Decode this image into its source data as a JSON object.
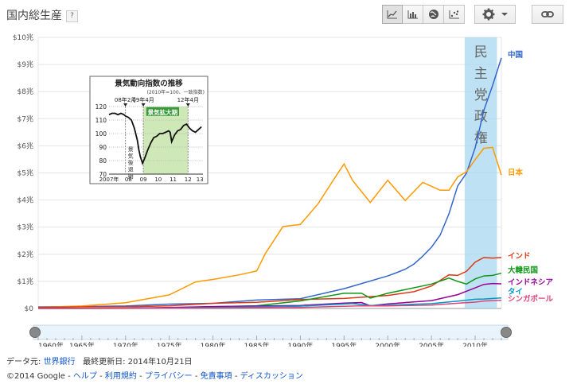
{
  "header": {
    "title": "国内総生産",
    "help": "?"
  },
  "toolbar": {
    "chart_types": [
      "line-chart-icon",
      "bar-chart-icon",
      "globe-icon",
      "scatter-icon"
    ],
    "settings": "gear-icon",
    "link": "link-icon"
  },
  "chart_data": {
    "type": "line",
    "xlim": [
      1960,
      2013
    ],
    "ylim": [
      0,
      10
    ],
    "y_ticks": [
      "$0",
      "$1兆",
      "$2兆",
      "$3兆",
      "$4兆",
      "$5兆",
      "$6兆",
      "$7兆",
      "$8兆",
      "$9兆",
      "$10兆"
    ],
    "x_ticks": [
      "1960年",
      "1965年",
      "1970年",
      "1975年",
      "1980年",
      "1985年",
      "1990年",
      "1995年",
      "2000年",
      "2005年",
      "2010年"
    ],
    "highlight": {
      "x_from": 2008.8,
      "x_to": 2012.5,
      "label": [
        "民",
        "主",
        "党",
        "政",
        "権"
      ],
      "color": "#a8d8f0"
    },
    "series": [
      {
        "name": "中国",
        "color": "#3366cc",
        "x": [
          1960,
          1965,
          1970,
          1975,
          1980,
          1985,
          1990,
          1995,
          2000,
          2001,
          2002,
          2003,
          2004,
          2005,
          2006,
          2007,
          2008,
          2009,
          2010,
          2011,
          2012,
          2013
        ],
        "y": [
          0.06,
          0.07,
          0.09,
          0.16,
          0.19,
          0.31,
          0.36,
          0.73,
          1.2,
          1.32,
          1.45,
          1.64,
          1.93,
          2.26,
          2.71,
          3.49,
          4.52,
          4.99,
          5.93,
          7.31,
          8.23,
          9.24
        ]
      },
      {
        "name": "日本",
        "color": "#ff9900",
        "x": [
          1960,
          1965,
          1970,
          1975,
          1978,
          1980,
          1983,
          1985,
          1986,
          1988,
          1990,
          1992,
          1994,
          1995,
          1996,
          1998,
          2000,
          2002,
          2004,
          2006,
          2007,
          2008,
          2009,
          2010,
          2011,
          2012,
          2013
        ],
        "y": [
          0.04,
          0.09,
          0.21,
          0.5,
          0.98,
          1.07,
          1.24,
          1.38,
          2.03,
          3.02,
          3.1,
          3.85,
          4.85,
          5.33,
          4.71,
          3.91,
          4.73,
          3.98,
          4.65,
          4.36,
          4.36,
          4.85,
          5.04,
          5.49,
          5.91,
          5.94,
          4.92
        ]
      },
      {
        "name": "インド",
        "color": "#dc3912",
        "x": [
          1960,
          1965,
          1970,
          1975,
          1980,
          1985,
          1990,
          1995,
          2000,
          2003,
          2005,
          2007,
          2008,
          2009,
          2010,
          2011,
          2012,
          2013
        ],
        "y": [
          0.04,
          0.06,
          0.06,
          0.1,
          0.19,
          0.23,
          0.33,
          0.37,
          0.48,
          0.62,
          0.83,
          1.24,
          1.22,
          1.37,
          1.71,
          1.88,
          1.86,
          1.88
        ]
      },
      {
        "name": "大韓民国",
        "color": "#109618",
        "x": [
          1960,
          1965,
          1970,
          1975,
          1980,
          1985,
          1990,
          1995,
          1997,
          1998,
          2000,
          2005,
          2007,
          2008,
          2009,
          2010,
          2011,
          2012,
          2013
        ],
        "y": [
          0.004,
          0.003,
          0.009,
          0.02,
          0.065,
          0.1,
          0.28,
          0.56,
          0.56,
          0.38,
          0.56,
          0.9,
          1.12,
          1.0,
          0.9,
          1.09,
          1.2,
          1.22,
          1.3
        ]
      },
      {
        "name": "インドネシア",
        "color": "#990099",
        "x": [
          1960,
          1970,
          1980,
          1990,
          1995,
          1997,
          1998,
          2000,
          2005,
          2008,
          2010,
          2011,
          2012,
          2013
        ],
        "y": [
          0.01,
          0.01,
          0.07,
          0.11,
          0.2,
          0.22,
          0.1,
          0.17,
          0.29,
          0.51,
          0.76,
          0.89,
          0.92,
          0.91
        ]
      },
      {
        "name": "タイ",
        "color": "#0099c6",
        "x": [
          1960,
          1970,
          1980,
          1990,
          1996,
          1998,
          2000,
          2005,
          2008,
          2010,
          2011,
          2012,
          2013
        ],
        "y": [
          0.003,
          0.007,
          0.032,
          0.085,
          0.18,
          0.11,
          0.12,
          0.18,
          0.27,
          0.34,
          0.35,
          0.37,
          0.39
        ]
      },
      {
        "name": "シンガポール",
        "color": "#dd4477",
        "x": [
          1960,
          1970,
          1980,
          1990,
          1997,
          2000,
          2005,
          2008,
          2010,
          2011,
          2012,
          2013
        ],
        "y": [
          0.001,
          0.002,
          0.012,
          0.038,
          0.1,
          0.096,
          0.127,
          0.193,
          0.236,
          0.275,
          0.29,
          0.3
        ]
      }
    ],
    "inset": {
      "title": "景気動向指数の推移",
      "subtitle": "(2010年=100、一致指数)",
      "y_ticks": [
        "120",
        "110",
        "100",
        "90",
        "80",
        "70"
      ],
      "x_ticks": [
        "2007年",
        "08",
        "09",
        "10",
        "11",
        "12",
        "13"
      ],
      "marks": [
        "08年2月",
        "09年4月",
        "12年4月"
      ],
      "green_label": "景気拡大期",
      "vertical_label": "景気後退期",
      "x": [
        2007.0,
        2007.2,
        2007.4,
        2007.6,
        2007.8,
        2008.0,
        2008.1,
        2008.3,
        2008.5,
        2008.7,
        2008.9,
        2009.0,
        2009.1,
        2009.25,
        2009.4,
        2009.6,
        2009.8,
        2010.0,
        2010.2,
        2010.4,
        2010.6,
        2010.8,
        2011.0,
        2011.1,
        2011.2,
        2011.4,
        2011.6,
        2011.8,
        2012.0,
        2012.2,
        2012.4,
        2012.6,
        2012.8,
        2013.0,
        2013.2
      ],
      "y": [
        114,
        115,
        115,
        114,
        115,
        114,
        113,
        112,
        110,
        104,
        95,
        88,
        83,
        78,
        82,
        88,
        93,
        97,
        98,
        100,
        100,
        101,
        102,
        101,
        94,
        99,
        102,
        103,
        106,
        107,
        104,
        102,
        101,
        103,
        105
      ]
    }
  },
  "footer": {
    "source_label": "データ元:",
    "source": "世界銀行",
    "updated": "最終更新日: 2014年10月21日",
    "copyright": "©2014 Google -",
    "links": [
      "ヘルプ",
      "利用規約",
      "プライバシー",
      "免責事項",
      "ディスカッション"
    ]
  }
}
